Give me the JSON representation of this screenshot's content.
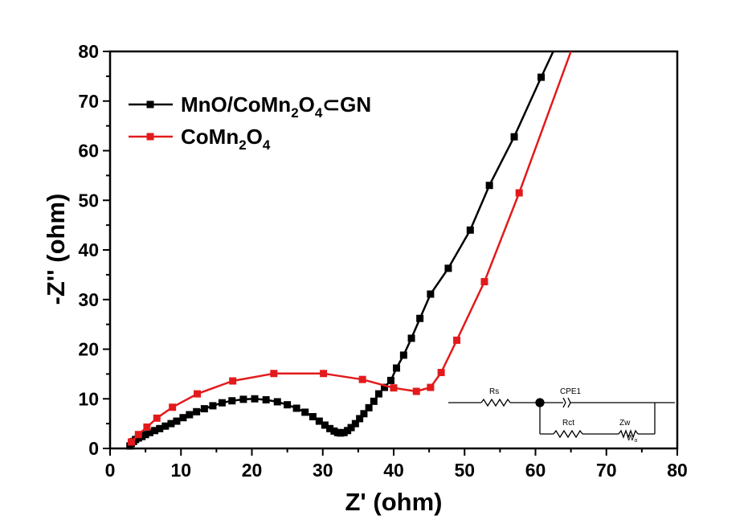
{
  "chart_data": {
    "type": "line",
    "xlabel": "Z' (ohm)",
    "ylabel": "-Z'' (ohm)",
    "xlim": [
      0,
      80
    ],
    "ylim": [
      0,
      80
    ],
    "x_ticks": [
      0,
      10,
      20,
      30,
      40,
      50,
      60,
      70,
      80
    ],
    "y_ticks": [
      0,
      10,
      20,
      30,
      40,
      50,
      60,
      70,
      80
    ],
    "grid": false,
    "legend_position": "top-left",
    "series": [
      {
        "name": "MnO/CoMn2O4⊂GN",
        "color": "#000000",
        "marker": "square",
        "points": [
          [
            2.8,
            0.5
          ],
          [
            3.0,
            1.0
          ],
          [
            3.3,
            1.4
          ],
          [
            3.6,
            1.8
          ],
          [
            4.0,
            2.1
          ],
          [
            4.5,
            2.4
          ],
          [
            5.0,
            2.8
          ],
          [
            5.6,
            3.2
          ],
          [
            6.3,
            3.6
          ],
          [
            7.0,
            4.0
          ],
          [
            7.8,
            4.5
          ],
          [
            8.6,
            5.0
          ],
          [
            9.4,
            5.5
          ],
          [
            10.3,
            6.2
          ],
          [
            11.2,
            6.8
          ],
          [
            12.2,
            7.4
          ],
          [
            13.3,
            8.0
          ],
          [
            14.5,
            8.6
          ],
          [
            15.8,
            9.2
          ],
          [
            17.2,
            9.6
          ],
          [
            18.8,
            9.9
          ],
          [
            20.4,
            10.0
          ],
          [
            22.0,
            9.8
          ],
          [
            23.6,
            9.4
          ],
          [
            25.0,
            8.8
          ],
          [
            26.3,
            8.1
          ],
          [
            27.5,
            7.3
          ],
          [
            28.6,
            6.4
          ],
          [
            29.5,
            5.5
          ],
          [
            30.3,
            4.7
          ],
          [
            31.0,
            4.0
          ],
          [
            31.6,
            3.5
          ],
          [
            32.1,
            3.2
          ],
          [
            32.5,
            3.1
          ],
          [
            33.0,
            3.2
          ],
          [
            33.5,
            3.6
          ],
          [
            34.0,
            4.2
          ],
          [
            34.6,
            5.0
          ],
          [
            35.2,
            6.0
          ],
          [
            35.8,
            7.0
          ],
          [
            36.5,
            8.2
          ],
          [
            37.2,
            9.5
          ],
          [
            37.9,
            11.0
          ],
          [
            38.7,
            12.3
          ],
          [
            39.6,
            13.7
          ],
          [
            40.4,
            16.2
          ],
          [
            41.4,
            18.8
          ],
          [
            42.5,
            22.2
          ],
          [
            43.7,
            26.2
          ],
          [
            45.2,
            31.1
          ],
          [
            47.7,
            36.3
          ],
          [
            50.8,
            44.0
          ],
          [
            53.5,
            53.0
          ],
          [
            57.0,
            62.8
          ],
          [
            60.8,
            74.8
          ],
          [
            62.5,
            80.0
          ]
        ]
      },
      {
        "name": "CoMn2O4",
        "color": "#e31a1c",
        "marker": "square",
        "points": [
          [
            3.0,
            1.3
          ],
          [
            4.0,
            2.8
          ],
          [
            5.2,
            4.3
          ],
          [
            6.6,
            6.1
          ],
          [
            8.8,
            8.3
          ],
          [
            12.3,
            11.0
          ],
          [
            17.3,
            13.6
          ],
          [
            23.1,
            15.1
          ],
          [
            30.1,
            15.1
          ],
          [
            35.6,
            13.9
          ],
          [
            40.0,
            12.2
          ],
          [
            43.2,
            11.5
          ],
          [
            45.2,
            12.3
          ],
          [
            46.7,
            15.3
          ],
          [
            48.9,
            21.8
          ],
          [
            52.8,
            33.6
          ],
          [
            57.7,
            51.5
          ],
          [
            65.0,
            80.0
          ]
        ]
      }
    ],
    "inset_circuit": {
      "labels": [
        "Rs",
        "CPE1",
        "Rct",
        "Zw"
      ],
      "warburg_symbol": "W",
      "warburg_subscript": "o"
    }
  }
}
